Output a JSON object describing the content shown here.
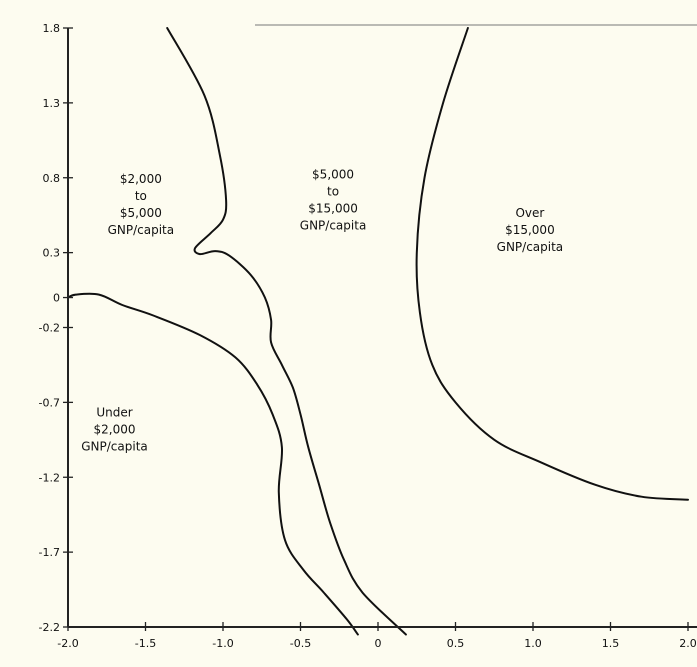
{
  "chart_data": {
    "type": "line",
    "title": "",
    "xlabel": "",
    "ylabel": "",
    "xlim": [
      -2.0,
      2.0
    ],
    "ylim": [
      -2.2,
      1.8
    ],
    "x_ticks": [
      -2.0,
      -1.5,
      -1.0,
      -0.5,
      0,
      0.5,
      1.0,
      1.5,
      2.0
    ],
    "x_tick_labels": [
      "-2.0",
      "-1.5",
      "-1.0",
      "-0.5",
      "0",
      "0.5",
      "1.0",
      "1.5",
      "2.0"
    ],
    "y_ticks": [
      1.8,
      1.3,
      0.8,
      0.3,
      0,
      -0.2,
      -0.7,
      -1.2,
      -1.7,
      -2.2
    ],
    "y_tick_labels": [
      "1.8",
      "1.3",
      "0.8",
      "0.3",
      "0",
      "-0.2",
      "-0.7",
      "-1.2",
      "-1.7",
      "-2.2"
    ],
    "grid": false,
    "series": [
      {
        "points": [
          [
            -1.36,
            1.8
          ],
          [
            -1.12,
            1.35
          ],
          [
            -1.02,
            0.95
          ],
          [
            -0.98,
            0.65
          ],
          [
            -1.0,
            0.52
          ],
          [
            -1.08,
            0.43
          ],
          [
            -1.18,
            0.33
          ],
          [
            -1.15,
            0.29
          ],
          [
            -1.05,
            0.31
          ],
          [
            -0.96,
            0.28
          ],
          [
            -0.82,
            0.15
          ],
          [
            -0.73,
            0.0
          ],
          [
            -0.69,
            -0.15
          ],
          [
            -0.69,
            -0.3
          ],
          [
            -0.62,
            -0.45
          ],
          [
            -0.55,
            -0.6
          ],
          [
            -0.5,
            -0.78
          ],
          [
            -0.45,
            -1.0
          ],
          [
            -0.38,
            -1.25
          ],
          [
            -0.31,
            -1.5
          ],
          [
            -0.22,
            -1.75
          ],
          [
            -0.1,
            -1.97
          ],
          [
            0.18,
            -2.25
          ]
        ]
      },
      {
        "points": [
          [
            -2.0,
            0.0
          ],
          [
            -1.95,
            0.02
          ],
          [
            -1.8,
            0.02
          ],
          [
            -1.65,
            -0.05
          ],
          [
            -1.45,
            -0.12
          ],
          [
            -1.15,
            -0.25
          ],
          [
            -0.92,
            -0.4
          ],
          [
            -0.78,
            -0.58
          ],
          [
            -0.68,
            -0.78
          ],
          [
            -0.62,
            -1.0
          ],
          [
            -0.64,
            -1.3
          ],
          [
            -0.6,
            -1.62
          ],
          [
            -0.48,
            -1.82
          ],
          [
            -0.35,
            -1.97
          ],
          [
            -0.2,
            -2.15
          ],
          [
            -0.13,
            -2.25
          ]
        ]
      },
      {
        "points": [
          [
            0.58,
            1.8
          ],
          [
            0.42,
            1.3
          ],
          [
            0.3,
            0.8
          ],
          [
            0.25,
            0.3
          ],
          [
            0.27,
            -0.1
          ],
          [
            0.35,
            -0.45
          ],
          [
            0.5,
            -0.7
          ],
          [
            0.75,
            -0.95
          ],
          [
            1.05,
            -1.1
          ],
          [
            1.4,
            -1.25
          ],
          [
            1.7,
            -1.33
          ],
          [
            2.0,
            -1.35
          ]
        ]
      }
    ],
    "region_labels": [
      {
        "lines": [
          "$2,000",
          "to",
          "$5,000",
          "GNP/capita"
        ],
        "x": -1.53,
        "y": 0.62
      },
      {
        "lines": [
          "$5,000",
          "to",
          "$15,000",
          "GNP/capita"
        ],
        "x": -0.29,
        "y": 0.65
      },
      {
        "lines": [
          "Over",
          "$15,000",
          "GNP/capita"
        ],
        "x": 0.98,
        "y": 0.45
      },
      {
        "lines": [
          "Under",
          "$2,000",
          "GNP/capita"
        ],
        "x": -1.7,
        "y": -0.88
      }
    ]
  }
}
